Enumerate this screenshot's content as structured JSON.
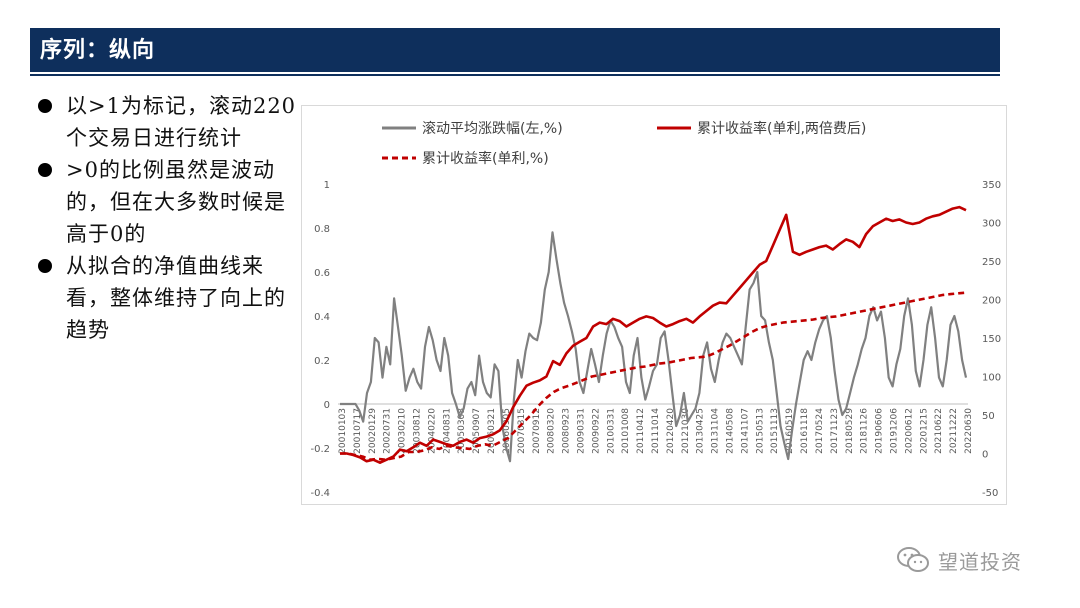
{
  "header": {
    "title": "序列：纵向"
  },
  "bullets": [
    "以>1为标记，滚动220个交易日进行统计",
    ">0的比例虽然是波动的，但在大多数时候是高于0的",
    "从拟合的净值曲线来看，整体维持了向上的趋势"
  ],
  "watermark": {
    "text": "望道投资",
    "icon": "wechat-icon"
  },
  "colors": {
    "header_bg": "#0e2f5c",
    "gray_series": "#808080",
    "red_series": "#c00000"
  },
  "chart_data": {
    "type": "line",
    "legend_position": "top",
    "grid": false,
    "y_left": {
      "ticks": [
        "1",
        "0.8",
        "0.6",
        "0.4",
        "0.2",
        "0",
        "-0.2",
        "-0.4"
      ],
      "range": [
        -0.4,
        1
      ]
    },
    "y_right": {
      "ticks": [
        "350",
        "300",
        "250",
        "200",
        "150",
        "100",
        "50",
        "0",
        "-50"
      ],
      "range": [
        -50,
        350
      ]
    },
    "x_labels": [
      "20010103",
      "20010717",
      "20020129",
      "20020731",
      "20030210",
      "20030812",
      "20040220",
      "20040831",
      "20050308",
      "20050907",
      "20060321",
      "20060905",
      "20070315",
      "20070912",
      "20080320",
      "20080923",
      "20090331",
      "20090922",
      "20100331",
      "20101008",
      "20110412",
      "20111014",
      "20120420",
      "20121030",
      "20130425",
      "20131104",
      "20140508",
      "20141107",
      "20150513",
      "20151113",
      "20160519",
      "20161118",
      "20170524",
      "20171123",
      "20180529",
      "20181126",
      "20190606",
      "20191206",
      "20200612",
      "20201215",
      "20210622",
      "20211222",
      "20220630"
    ],
    "x_labels_note": "",
    "series": [
      {
        "name": "滚动平均涨跌幅(左,%)",
        "axis": "left",
        "style": "solid",
        "color": "#808080",
        "values": [
          0,
          0,
          0,
          0,
          0,
          -0.03,
          -0.08,
          0.05,
          0.1,
          0.3,
          0.28,
          0.12,
          0.26,
          0.18,
          0.48,
          0.35,
          0.22,
          0.06,
          0.12,
          0.16,
          0.1,
          0.07,
          0.26,
          0.35,
          0.29,
          0.2,
          0.15,
          0.3,
          0.22,
          0.05,
          0.0,
          -0.06,
          -0.02,
          0.07,
          0.1,
          0.04,
          0.22,
          0.1,
          0.05,
          0.03,
          0.18,
          0.15,
          -0.1,
          -0.2,
          -0.26,
          0.02,
          0.2,
          0.12,
          0.24,
          0.32,
          0.3,
          0.29,
          0.37,
          0.52,
          0.6,
          0.78,
          0.66,
          0.55,
          0.46,
          0.4,
          0.33,
          0.25,
          0.1,
          0.05,
          0.15,
          0.25,
          0.18,
          0.1,
          0.22,
          0.32,
          0.38,
          0.35,
          0.3,
          0.26,
          0.1,
          0.05,
          0.22,
          0.3,
          0.12,
          0.02,
          0.08,
          0.15,
          0.18,
          0.3,
          0.33,
          0.2,
          0.05,
          -0.1,
          -0.05,
          0.05,
          -0.08,
          -0.05,
          -0.02,
          0.05,
          0.22,
          0.28,
          0.16,
          0.1,
          0.2,
          0.28,
          0.32,
          0.3,
          0.26,
          0.22,
          0.18,
          0.35,
          0.52,
          0.55,
          0.6,
          0.4,
          0.38,
          0.28,
          0.2,
          0.05,
          -0.1,
          -0.18,
          -0.25,
          -0.12,
          0.0,
          0.1,
          0.2,
          0.24,
          0.2,
          0.28,
          0.34,
          0.38,
          0.4,
          0.3,
          0.15,
          0.02,
          -0.05,
          -0.02,
          0.05,
          0.12,
          0.18,
          0.25,
          0.3,
          0.4,
          0.44,
          0.38,
          0.42,
          0.3,
          0.12,
          0.08,
          0.18,
          0.25,
          0.4,
          0.48,
          0.36,
          0.15,
          0.08,
          0.2,
          0.36,
          0.44,
          0.3,
          0.12,
          0.08,
          0.2,
          0.36,
          0.4,
          0.33,
          0.2,
          0.12
        ]
      },
      {
        "name": "累计收益率(单利,两倍费后)",
        "axis": "right",
        "style": "solid",
        "color": "#c00000",
        "values": [
          0,
          0,
          -2,
          -5,
          -10,
          -8,
          -12,
          -8,
          -4,
          5,
          3,
          8,
          14,
          10,
          18,
          15,
          12,
          10,
          15,
          18,
          14,
          20,
          22,
          25,
          30,
          42,
          60,
          75,
          88,
          92,
          95,
          100,
          120,
          115,
          130,
          140,
          145,
          150,
          165,
          170,
          168,
          175,
          172,
          165,
          170,
          175,
          178,
          176,
          170,
          165,
          168,
          172,
          175,
          170,
          178,
          185,
          192,
          196,
          195,
          205,
          215,
          225,
          235,
          245,
          250,
          270,
          290,
          310,
          262,
          258,
          262,
          265,
          268,
          270,
          265,
          272,
          278,
          275,
          268,
          285,
          295,
          300,
          305,
          302,
          304,
          300,
          298,
          300,
          305,
          308,
          310,
          314,
          318,
          320,
          316
        ]
      },
      {
        "name": "累计收益率(单利,%)",
        "axis": "right",
        "style": "dashed",
        "color": "#c00000",
        "values": [
          0,
          0,
          -2,
          -4,
          -8,
          -7,
          -8,
          -6,
          -4,
          2,
          2,
          4,
          8,
          6,
          10,
          8,
          7,
          6,
          10,
          12,
          10,
          15,
          20,
          30,
          40,
          50,
          62,
          72,
          80,
          85,
          88,
          92,
          96,
          100,
          102,
          104,
          106,
          108,
          110,
          112,
          113,
          115,
          117,
          118,
          120,
          122,
          124,
          125,
          126,
          130,
          135,
          140,
          146,
          152,
          158,
          163,
          166,
          168,
          170,
          171,
          172,
          173,
          174,
          176,
          177,
          178,
          180,
          182,
          184,
          186,
          188,
          190,
          192,
          194,
          196,
          198,
          200,
          202,
          204,
          206,
          207,
          208,
          209
        ]
      }
    ]
  }
}
